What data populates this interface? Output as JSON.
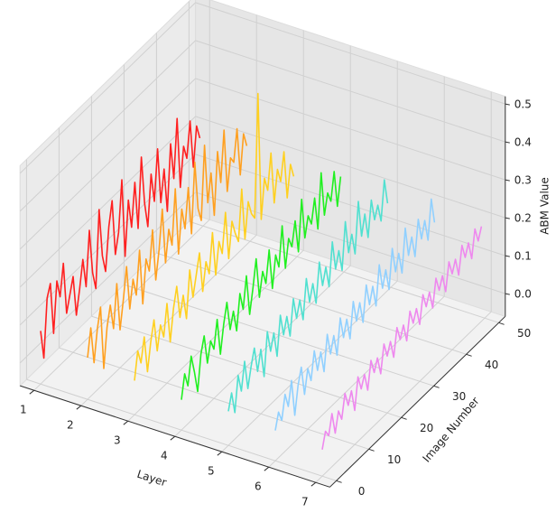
{
  "chart_data": {
    "type": "line3d",
    "x_label": "Layer",
    "y_label": "Image Number",
    "z_label": "ABM Value",
    "xlim": [
      0.7,
      7.3
    ],
    "xticks": [
      1,
      2,
      3,
      4,
      5,
      6,
      7
    ],
    "ylim": [
      -2,
      52
    ],
    "yticks": [
      0,
      10,
      20,
      30,
      40,
      50
    ],
    "zlim": [
      -0.06,
      0.52
    ],
    "zticks": [
      {
        "value": 0,
        "label": "0.0"
      },
      0.1,
      0.2,
      0.3,
      0.4,
      0.5
    ],
    "x": [
      0,
      1,
      2,
      3,
      4,
      5,
      6,
      7,
      8,
      9,
      10,
      11,
      12,
      13,
      14,
      15,
      16,
      17,
      18,
      19,
      20,
      21,
      22,
      23,
      24,
      25,
      26,
      27,
      28,
      29,
      30,
      31,
      32,
      33,
      34,
      35,
      36,
      37,
      38,
      39,
      40,
      41,
      42,
      43,
      44,
      45,
      46,
      47,
      48,
      49
    ],
    "series": [
      {
        "name": "1",
        "color": "#ff2020",
        "values": [
          0.08,
          0.0,
          0.15,
          0.18,
          0.04,
          0.17,
          0.12,
          0.2,
          0.06,
          0.1,
          0.14,
          0.03,
          0.09,
          0.16,
          0.08,
          0.22,
          0.1,
          0.05,
          0.25,
          0.12,
          0.07,
          0.18,
          0.24,
          0.09,
          0.14,
          0.27,
          0.06,
          0.2,
          0.12,
          0.23,
          0.1,
          0.28,
          0.15,
          0.08,
          0.21,
          0.13,
          0.26,
          0.11,
          0.19,
          0.07,
          0.24,
          0.14,
          0.29,
          0.1,
          0.2,
          0.16,
          0.25,
          0.12,
          0.22,
          0.18
        ]
      },
      {
        "name": "2",
        "color": "#ffa020",
        "values": [
          0.05,
          0.12,
          0.02,
          0.1,
          0.15,
          -0.02,
          0.08,
          0.13,
          0.06,
          0.17,
          0.04,
          0.11,
          0.19,
          0.07,
          0.14,
          0.09,
          0.2,
          0.05,
          0.16,
          0.12,
          0.22,
          0.08,
          0.15,
          0.25,
          0.1,
          0.18,
          0.13,
          0.27,
          0.09,
          0.2,
          0.14,
          0.24,
          0.11,
          0.29,
          0.16,
          0.12,
          0.31,
          0.15,
          0.22,
          0.1,
          0.26,
          0.17,
          0.3,
          0.13,
          0.21,
          0.19,
          0.27,
          0.14,
          0.24,
          0.2
        ]
      },
      {
        "name": "3",
        "color": "#ffd020",
        "values": [
          0.03,
          0.1,
          0.06,
          0.12,
          0.02,
          0.09,
          0.14,
          0.05,
          0.11,
          0.07,
          0.15,
          0.04,
          0.12,
          0.17,
          0.08,
          0.13,
          0.06,
          0.18,
          0.1,
          0.15,
          0.2,
          0.09,
          0.16,
          0.12,
          0.22,
          0.1,
          0.18,
          0.14,
          0.24,
          0.11,
          0.2,
          0.16,
          0.13,
          0.26,
          0.12,
          0.21,
          0.17,
          0.15,
          0.47,
          0.13,
          0.23,
          0.19,
          0.28,
          0.14,
          0.22,
          0.18,
          0.25,
          0.12,
          0.2,
          0.16
        ]
      },
      {
        "name": "4",
        "color": "#20f020",
        "values": [
          0.02,
          0.08,
          0.04,
          0.11,
          0.06,
          0.0,
          0.09,
          0.13,
          0.05,
          0.1,
          0.07,
          0.14,
          0.04,
          0.11,
          0.16,
          0.08,
          0.12,
          0.06,
          0.15,
          0.1,
          0.18,
          0.07,
          0.13,
          0.2,
          0.09,
          0.15,
          0.11,
          0.19,
          0.08,
          0.16,
          0.12,
          0.22,
          0.1,
          0.17,
          0.14,
          0.2,
          0.11,
          0.24,
          0.13,
          0.18,
          0.15,
          0.21,
          0.12,
          0.26,
          0.14,
          0.19,
          0.16,
          0.23,
          0.13,
          0.2
        ]
      },
      {
        "name": "5",
        "color": "#50e0d0",
        "values": [
          0.03,
          0.07,
          0.01,
          0.1,
          0.05,
          0.12,
          0.04,
          0.09,
          0.13,
          0.06,
          0.11,
          0.03,
          0.14,
          0.08,
          0.12,
          0.05,
          0.15,
          0.09,
          0.13,
          0.07,
          0.16,
          0.1,
          0.14,
          0.08,
          0.18,
          0.11,
          0.15,
          0.09,
          0.19,
          0.12,
          0.16,
          0.1,
          0.21,
          0.13,
          0.17,
          0.11,
          0.23,
          0.14,
          0.18,
          0.12,
          0.25,
          0.15,
          0.2,
          0.13,
          0.22,
          0.16,
          0.19,
          0.14,
          0.24,
          0.17
        ]
      },
      {
        "name": "6",
        "color": "#90d0ff",
        "values": [
          0.02,
          0.06,
          0.03,
          0.09,
          0.05,
          0.11,
          0.01,
          0.08,
          0.12,
          0.04,
          0.1,
          0.06,
          0.13,
          0.07,
          0.11,
          0.05,
          0.14,
          0.08,
          0.12,
          0.06,
          0.15,
          0.09,
          0.13,
          0.07,
          0.16,
          0.1,
          0.14,
          0.08,
          0.17,
          0.11,
          0.15,
          0.09,
          0.19,
          0.12,
          0.16,
          0.1,
          0.2,
          0.13,
          0.17,
          0.11,
          0.22,
          0.14,
          0.18,
          0.12,
          0.21,
          0.15,
          0.19,
          0.13,
          0.23,
          0.16
        ]
      },
      {
        "name": "7",
        "color": "#ee88ee",
        "values": [
          0.01,
          0.05,
          0.03,
          0.08,
          0.02,
          0.07,
          0.04,
          0.1,
          0.06,
          0.09,
          0.03,
          0.11,
          0.07,
          0.1,
          0.05,
          0.12,
          0.08,
          0.11,
          0.06,
          0.13,
          0.09,
          0.12,
          0.07,
          0.14,
          0.1,
          0.13,
          0.08,
          0.15,
          0.11,
          0.14,
          0.09,
          0.16,
          0.12,
          0.15,
          0.1,
          0.17,
          0.13,
          0.16,
          0.11,
          0.18,
          0.14,
          0.17,
          0.12,
          0.19,
          0.15,
          0.18,
          0.13,
          0.2,
          0.16,
          0.19
        ]
      }
    ]
  }
}
